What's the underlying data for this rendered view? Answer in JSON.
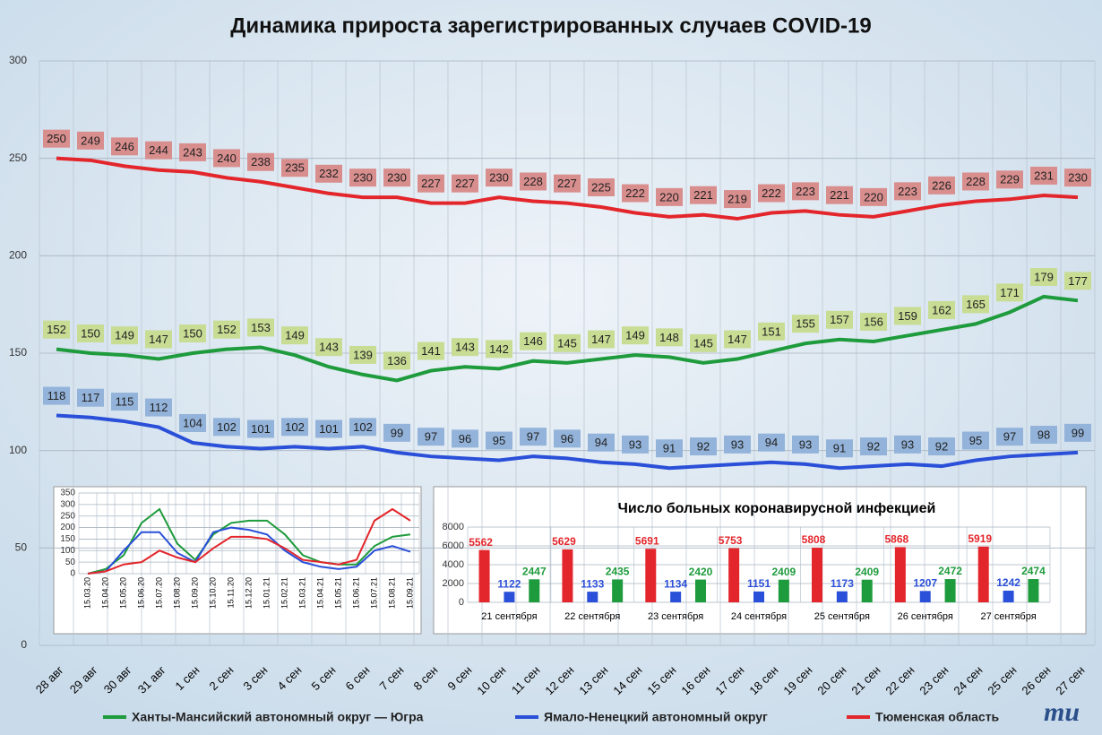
{
  "chart_data": [
    {
      "type": "line",
      "title": "Динамика прироста зарегистрированных случаев COVID-19",
      "categories": [
        "28 авг",
        "29 авг",
        "30 авг",
        "31 авг",
        "1 сен",
        "2 сен",
        "3 сен",
        "4 сен",
        "5 сен",
        "6 сен",
        "7 сен",
        "8 сен",
        "9 сен",
        "10 сен",
        "11 сен",
        "12 сен",
        "13 сен",
        "14 сен",
        "15 сен",
        "16 сен",
        "17 сен",
        "18 сен",
        "19 сен",
        "20 сен",
        "21 сен",
        "22 сен",
        "23 сен",
        "24 сен",
        "25 сен",
        "26 сен",
        "27 сен"
      ],
      "series": [
        {
          "name": "Ханты-Мансийский автономный округ — Югра",
          "color": "#1e9b3c",
          "label_color": "#c8dc94",
          "values": [
            152,
            150,
            149,
            147,
            150,
            152,
            153,
            149,
            143,
            139,
            136,
            141,
            143,
            142,
            146,
            145,
            147,
            149,
            148,
            145,
            147,
            151,
            155,
            157,
            156,
            159,
            162,
            165,
            171,
            179,
            177
          ]
        },
        {
          "name": "Ямало-Ненецкий автономный округ",
          "color": "#2a4fd8",
          "label_color": "#93b3da",
          "values": [
            118,
            117,
            115,
            112,
            104,
            102,
            101,
            102,
            101,
            102,
            99,
            97,
            96,
            95,
            97,
            96,
            94,
            93,
            91,
            92,
            93,
            94,
            93,
            91,
            92,
            93,
            92,
            95,
            97,
            98,
            99
          ]
        },
        {
          "name": "Тюменская область",
          "color": "#e3262b",
          "label_color": "#d98e8e",
          "values": [
            250,
            249,
            246,
            244,
            243,
            240,
            238,
            235,
            232,
            230,
            230,
            227,
            227,
            230,
            228,
            227,
            225,
            222,
            220,
            221,
            219,
            222,
            223,
            221,
            220,
            223,
            226,
            228,
            229,
            231,
            230
          ]
        }
      ],
      "ylim": [
        0,
        300
      ],
      "yticks": [
        0,
        50,
        100,
        150,
        200,
        250,
        300
      ],
      "grid": true,
      "legend": "bottom"
    },
    {
      "type": "line",
      "categories": [
        "15.03.20",
        "15.04.20",
        "15.05.20",
        "15.06.20",
        "15.07.20",
        "15.08.20",
        "15.09.20",
        "15.10.20",
        "15.11.20",
        "15.12.20",
        "15.01.21",
        "15.02.21",
        "15.03.21",
        "15.04.21",
        "15.05.21",
        "15.06.21",
        "15.07.21",
        "15.08.21",
        "15.09.21"
      ],
      "series": [
        {
          "color": "#1e9b3c",
          "values": [
            0,
            20,
            80,
            220,
            280,
            130,
            60,
            170,
            220,
            230,
            230,
            170,
            80,
            50,
            40,
            40,
            120,
            160,
            170
          ]
        },
        {
          "color": "#2a4fd8",
          "values": [
            0,
            10,
            100,
            180,
            180,
            90,
            50,
            180,
            200,
            190,
            170,
            100,
            50,
            30,
            20,
            30,
            100,
            120,
            95
          ]
        },
        {
          "color": "#e3262b",
          "values": [
            0,
            10,
            40,
            50,
            100,
            70,
            50,
            110,
            160,
            160,
            150,
            110,
            60,
            50,
            40,
            60,
            230,
            280,
            230
          ]
        }
      ],
      "ylim": [
        0,
        350
      ],
      "yticks": [
        0,
        50,
        100,
        150,
        200,
        250,
        300,
        350
      ],
      "grid": true
    },
    {
      "type": "bar",
      "title": "Число больных коронавирусной  инфекцией",
      "categories": [
        "21 сентября",
        "22 сентября",
        "23 сентября",
        "24 сентября",
        "25 сентября",
        "26 сентября",
        "27 сентября"
      ],
      "series": [
        {
          "color": "#e3262b",
          "values": [
            5562,
            5629,
            5691,
            5753,
            5808,
            5868,
            5919
          ]
        },
        {
          "color": "#2a4fd8",
          "values": [
            1122,
            1133,
            1134,
            1151,
            1173,
            1207,
            1242
          ]
        },
        {
          "color": "#1e9b3c",
          "values": [
            2447,
            2435,
            2420,
            2409,
            2409,
            2472,
            2474
          ]
        }
      ],
      "ylim": [
        0,
        8000
      ],
      "yticks": [
        0,
        2000,
        4000,
        6000,
        8000
      ],
      "grid": true
    }
  ],
  "logo": "mu"
}
